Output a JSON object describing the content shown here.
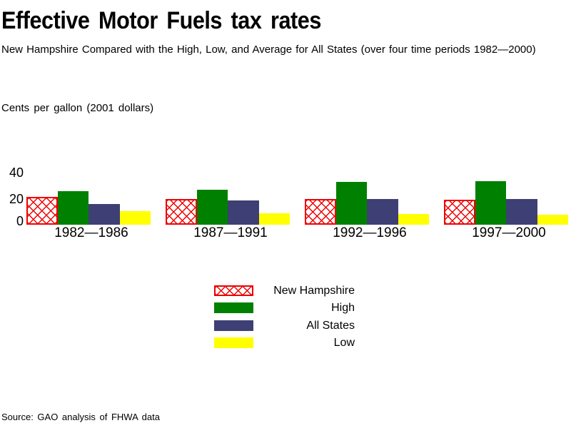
{
  "chart_data": {
    "type": "bar",
    "title": "Effective Motor Fuels tax rates",
    "subtitle": "New Hampshire Compared with the High, Low, and Average for All States (over four time periods 1982—2000)",
    "ylabel": "Cents per gallon (2001 dollars)",
    "categories": [
      "1982—1986",
      "1987—1991",
      "1992—1996",
      "1997—2000"
    ],
    "series": [
      {
        "name": "New Hampshire",
        "style": "crosshatch",
        "color": "#EE0000",
        "values": [
          21.5,
          19.5,
          20,
          19
        ]
      },
      {
        "name": "High",
        "style": "solid",
        "color": "#008000",
        "values": [
          26,
          27,
          33,
          33.5
        ]
      },
      {
        "name": "All States",
        "style": "solid",
        "color": "#3E3F75",
        "values": [
          16,
          18.5,
          19.5,
          20
        ]
      },
      {
        "name": "Low",
        "style": "solid",
        "color": "#FFFF00",
        "values": [
          10.5,
          9,
          8,
          7.5
        ]
      }
    ],
    "yticks": [
      0,
      20,
      40
    ],
    "ylim": [
      0,
      46
    ],
    "grid": false,
    "legend_position": "bottom-center",
    "source": "Source: GAO analysis of FHWA data"
  }
}
